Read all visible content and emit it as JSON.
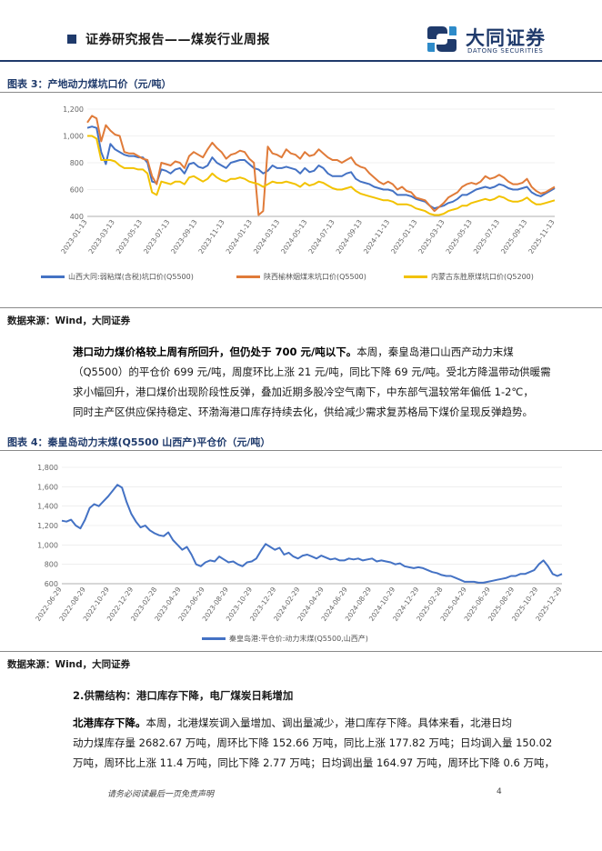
{
  "header": {
    "title": "证券研究报告——煤炭行业周报",
    "logo_cn": "大同证券",
    "logo_en": "DATONG SECURITIES"
  },
  "figure3": {
    "title": "图表 3：产地动力煤坑口价（元/吨）",
    "source": "数据来源：Wind，大同证券",
    "legend": [
      {
        "name": "山西大同:弱粘煤(含税)坑口价(Q5500)",
        "color": "#4472c4"
      },
      {
        "name": "陕西榆林烟煤末坑口价(Q5500)",
        "color": "#e07b39"
      },
      {
        "name": "内蒙古东胜原煤坑口价(Q5200)",
        "color": "#f2c200"
      }
    ],
    "chart_data": {
      "type": "line",
      "ylim": [
        400,
        1200
      ],
      "yticks": [
        "400",
        "600",
        "800",
        "1,000",
        "1,200"
      ],
      "xticks": [
        "2023-01-13",
        "2023-03-13",
        "2023-05-13",
        "2023-07-13",
        "2023-09-13",
        "2023-11-13",
        "2024-01-13",
        "2024-03-13",
        "2024-05-13",
        "2024-07-13",
        "2024-09-13",
        "2024-11-13",
        "2025-01-13",
        "2025-03-13",
        "2025-05-13",
        "2025-07-13",
        "2025-09-13",
        "2025-11-13"
      ],
      "series": [
        {
          "name": "山西大同:弱粘煤(含税)坑口价(Q5500)",
          "color": "#4472c4",
          "values": [
            1060,
            1070,
            1060,
            880,
            790,
            940,
            900,
            880,
            860,
            850,
            850,
            840,
            840,
            800,
            660,
            650,
            750,
            740,
            720,
            750,
            760,
            720,
            790,
            800,
            770,
            760,
            780,
            840,
            800,
            780,
            760,
            800,
            810,
            820,
            820,
            790,
            760,
            750,
            720,
            740,
            780,
            760,
            760,
            770,
            760,
            750,
            720,
            760,
            730,
            740,
            780,
            760,
            720,
            700,
            700,
            700,
            720,
            730,
            680,
            660,
            650,
            640,
            620,
            610,
            600,
            600,
            590,
            560,
            560,
            560,
            550,
            530,
            520,
            510,
            480,
            460,
            470,
            480,
            500,
            510,
            530,
            560,
            560,
            580,
            600,
            610,
            620,
            610,
            620,
            640,
            630,
            610,
            600,
            600,
            610,
            620,
            580,
            560,
            550,
            570,
            590,
            610
          ]
        },
        {
          "name": "陕西榆林烟煤末坑口价(Q5500)",
          "color": "#e07b39",
          "values": [
            1100,
            1150,
            1130,
            960,
            1080,
            1040,
            1010,
            1000,
            880,
            870,
            870,
            850,
            830,
            820,
            700,
            640,
            800,
            790,
            780,
            810,
            800,
            760,
            850,
            880,
            860,
            840,
            900,
            950,
            910,
            880,
            830,
            860,
            870,
            890,
            880,
            830,
            800,
            410,
            440,
            920,
            870,
            860,
            840,
            900,
            870,
            860,
            830,
            880,
            850,
            860,
            900,
            870,
            840,
            820,
            820,
            800,
            820,
            840,
            790,
            770,
            760,
            720,
            690,
            660,
            640,
            660,
            640,
            600,
            620,
            590,
            580,
            540,
            530,
            520,
            480,
            440,
            470,
            500,
            540,
            560,
            580,
            620,
            640,
            650,
            640,
            660,
            700,
            680,
            690,
            710,
            690,
            660,
            640,
            640,
            650,
            680,
            620,
            590,
            570,
            580,
            600,
            620
          ]
        },
        {
          "name": "内蒙古东胜原煤坑口价(Q5200)",
          "color": "#f2c200",
          "values": [
            1000,
            1000,
            980,
            820,
            820,
            820,
            810,
            780,
            760,
            760,
            760,
            750,
            750,
            720,
            580,
            560,
            660,
            650,
            640,
            660,
            660,
            640,
            690,
            700,
            680,
            660,
            680,
            720,
            690,
            670,
            660,
            680,
            680,
            690,
            680,
            660,
            650,
            640,
            620,
            640,
            660,
            650,
            650,
            660,
            650,
            640,
            620,
            650,
            630,
            640,
            660,
            650,
            630,
            610,
            600,
            600,
            610,
            620,
            590,
            570,
            560,
            550,
            540,
            530,
            520,
            520,
            510,
            490,
            490,
            490,
            480,
            460,
            450,
            440,
            420,
            410,
            410,
            420,
            440,
            450,
            460,
            480,
            480,
            500,
            510,
            520,
            530,
            520,
            530,
            550,
            540,
            520,
            510,
            510,
            520,
            540,
            510,
            490,
            490,
            500,
            510,
            520
          ]
        }
      ]
    }
  },
  "paragraph1": {
    "lead": "港口动力煤价格较上周有所回升，但仍处于 700 元/吨以下。",
    "lines": [
      "本周，秦皇岛港口山西产动力末煤",
      "（Q5500）的平仓价 699 元/吨，周度环比上涨 21 元/吨，同比下降 69 元/吨。受北方降温带动供暖需",
      "求小幅回升，港口煤价出现阶段性反弹，叠加近期多股冷空气南下，中东部气温较常年偏低 1-2℃，",
      "同时主产区供应保持稳定、环渤海港口库存持续去化，供给减少需求复苏格局下煤价呈现反弹趋势。"
    ]
  },
  "figure4": {
    "title": "图表 4：秦皇岛动力末煤(Q5500 山西产)平仓价（元/吨）",
    "source": "数据来源：Wind，大同证券",
    "legend": [
      {
        "name": "秦皇岛港:平仓价:动力末煤(Q5500,山西产)",
        "color": "#4472c4"
      }
    ],
    "chart_data": {
      "type": "line",
      "ylim": [
        600,
        1800
      ],
      "yticks": [
        "600",
        "800",
        "1,000",
        "1,200",
        "1,400",
        "1,600",
        "1,800"
      ],
      "xticks": [
        "2022-06-29",
        "2022-08-29",
        "2022-10-29",
        "2022-12-29",
        "2023-02-28",
        "2023-04-29",
        "2023-06-29",
        "2023-08-29",
        "2023-10-29",
        "2023-12-29",
        "2024-02-29",
        "2024-04-29",
        "2024-06-29",
        "2024-08-29",
        "2024-10-29",
        "2024-12-29",
        "2025-02-28",
        "2025-04-29",
        "2025-06-29",
        "2025-08-29",
        "2025-10-29",
        "2025-12-29"
      ],
      "series": [
        {
          "name": "秦皇岛港:平仓价:动力末煤(Q5500,山西产)",
          "color": "#4472c4",
          "values": [
            1250,
            1240,
            1260,
            1200,
            1170,
            1260,
            1380,
            1420,
            1400,
            1450,
            1500,
            1560,
            1620,
            1590,
            1440,
            1320,
            1240,
            1180,
            1200,
            1150,
            1120,
            1100,
            1090,
            1130,
            1050,
            1000,
            950,
            980,
            900,
            800,
            780,
            820,
            840,
            830,
            880,
            850,
            820,
            830,
            800,
            780,
            820,
            830,
            860,
            940,
            1010,
            980,
            950,
            970,
            900,
            920,
            880,
            860,
            890,
            900,
            880,
            860,
            890,
            870,
            850,
            860,
            840,
            840,
            860,
            850,
            860,
            840,
            850,
            860,
            830,
            840,
            830,
            820,
            800,
            810,
            780,
            770,
            760,
            770,
            760,
            740,
            720,
            710,
            690,
            680,
            680,
            660,
            640,
            620,
            620,
            620,
            610,
            610,
            620,
            630,
            640,
            650,
            660,
            680,
            680,
            700,
            700,
            720,
            740,
            800,
            840,
            780,
            700,
            680,
            700
          ]
        }
      ]
    }
  },
  "section2": {
    "heading": "2.供需结构：港口库存下降，电厂煤炭日耗增加",
    "lead": "北港库存下降。",
    "lines": [
      "本周，北港煤炭调入量增加、调出量减少，港口库存下降。具体来看，北港日均",
      "动力煤库存量 2682.67 万吨，周环比下降 152.66 万吨，同比上涨 177.82 万吨；日均调入量 150.02",
      "万吨，周环比上涨 11.4 万吨，同比下降 2.77 万吨；日均调出量 164.97 万吨，周环比下降 0.6 万吨，"
    ]
  },
  "footer": {
    "note": "请务必阅读最后一页免责声明",
    "page": "4"
  }
}
